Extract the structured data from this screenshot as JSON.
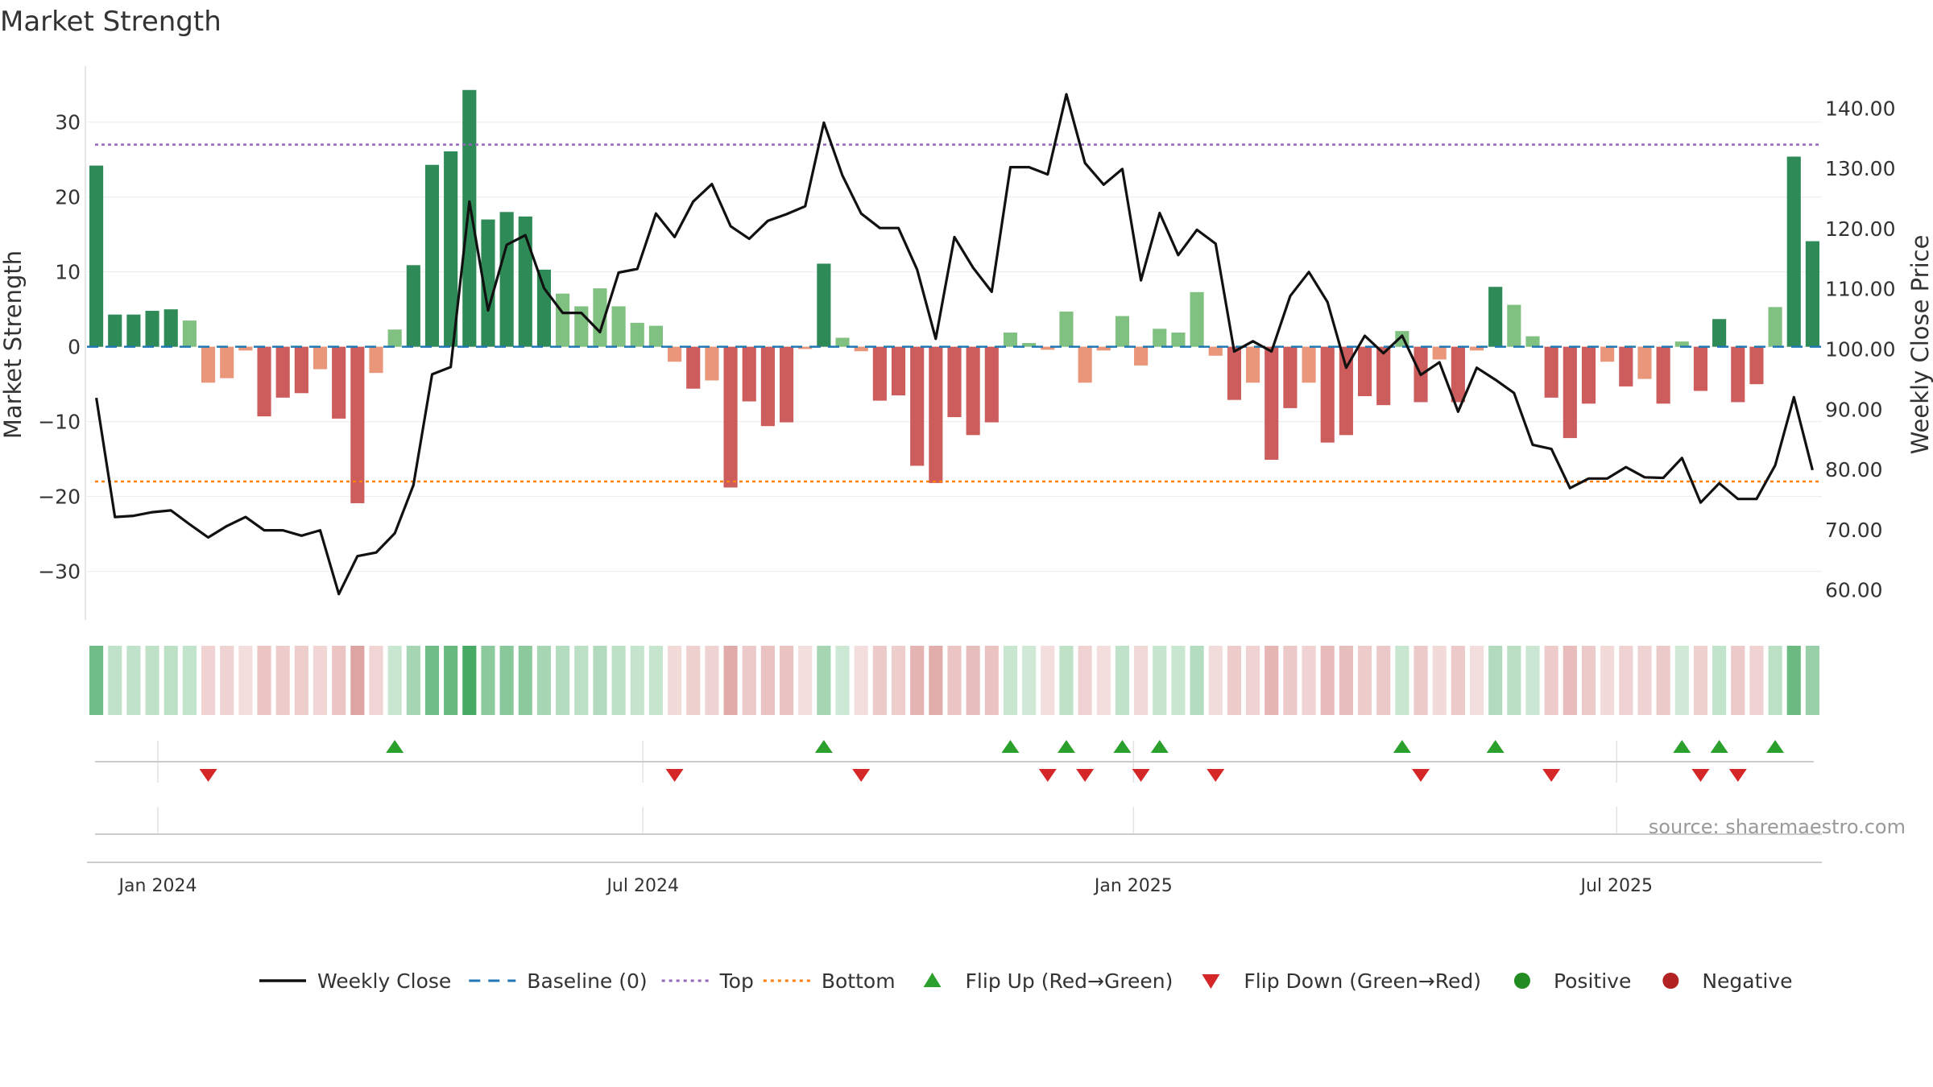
{
  "chart_data": {
    "type": "bar+line",
    "title": "Market Strength",
    "ylabel_left": "Market Strength",
    "ylabel_right": "Weekly Close Price",
    "ylim_left": [
      -36.5,
      37.5
    ],
    "ylim_right": [
      55,
      147
    ],
    "left_ticks": [
      30,
      20,
      10,
      0,
      -10,
      -20,
      -30
    ],
    "left_tick_labels": [
      "30",
      "20",
      "10",
      "0",
      "−10",
      "−20",
      "−30"
    ],
    "right_ticks": [
      140,
      130,
      120,
      110,
      100,
      90,
      80,
      70,
      60
    ],
    "right_tick_labels": [
      "140.00",
      "130.00",
      "120.00",
      "110.00",
      "100.00",
      "90.00",
      "80.00",
      "70.00",
      "60.00"
    ],
    "top_level": 27,
    "bottom_level": -18,
    "baseline": 0,
    "date_ticks": [
      {
        "label": "Jan 2024",
        "week": 3.3
      },
      {
        "label": "Jul 2024",
        "week": 29.3
      },
      {
        "label": "Jan 2025",
        "week": 55.6
      },
      {
        "label": "Jul 2025",
        "week": 81.5
      }
    ],
    "strength": [
      24.2,
      4.3,
      4.3,
      4.8,
      5.0,
      3.5,
      -4.8,
      -4.2,
      -0.5,
      -9.3,
      -6.8,
      -6.2,
      -3.0,
      -9.6,
      -20.9,
      -3.5,
      2.3,
      10.9,
      24.3,
      26.1,
      34.3,
      17.0,
      18.0,
      17.4,
      10.3,
      7.1,
      5.4,
      7.8,
      5.4,
      3.2,
      2.8,
      -2.0,
      -5.6,
      -4.5,
      -18.8,
      -7.3,
      -10.6,
      -10.1,
      -0.3,
      11.1,
      1.2,
      -0.6,
      -7.2,
      -6.5,
      -15.9,
      -18.2,
      -9.4,
      -11.8,
      -10.1,
      1.9,
      0.5,
      -0.4,
      4.7,
      -4.8,
      -0.5,
      4.1,
      -2.5,
      2.4,
      1.9,
      7.3,
      -1.2,
      -7.1,
      -4.8,
      -15.1,
      -8.2,
      -4.8,
      -12.8,
      -11.8,
      -6.6,
      -7.8,
      2.1,
      -7.4,
      -1.7,
      -7.4,
      -0.5,
      8.0,
      5.6,
      1.4,
      -6.8,
      -12.2,
      -7.6,
      -2.0,
      -5.3,
      -4.3,
      -7.6,
      0.7,
      -5.9,
      3.7,
      -7.4,
      -5.0,
      5.3,
      25.4,
      14.1
    ],
    "close": [
      91.9,
      72.1,
      72.3,
      72.9,
      73.2,
      70.9,
      68.7,
      70.6,
      72.1,
      69.9,
      69.9,
      69.0,
      69.9,
      59.3,
      65.6,
      66.2,
      69.4,
      77.4,
      95.8,
      97.0,
      124.5,
      106.4,
      117.3,
      118.9,
      110.1,
      106.0,
      106.0,
      102.8,
      112.7,
      113.3,
      122.5,
      118.6,
      124.5,
      127.4,
      120.4,
      118.3,
      121.3,
      122.4,
      123.7,
      137.6,
      128.8,
      122.5,
      120.1,
      120.1,
      113.2,
      101.7,
      118.6,
      113.5,
      109.5,
      130.2,
      130.2,
      129.0,
      142.3,
      130.9,
      127.3,
      129.9,
      111.4,
      122.6,
      115.6,
      119.8,
      117.5,
      99.6,
      101.3,
      99.6,
      108.8,
      112.8,
      107.8,
      96.9,
      102.2,
      99.3,
      102.2,
      95.7,
      97.8,
      89.6,
      96.9,
      94.9,
      92.7,
      84.1,
      83.4,
      76.9,
      78.5,
      78.5,
      80.4,
      78.7,
      78.6,
      81.9,
      74.5,
      77.7,
      75.1,
      75.1,
      80.7,
      92.0,
      79.9
    ],
    "flip_up_weeks": [
      16,
      39,
      49,
      52,
      55,
      57,
      70,
      75,
      85,
      87,
      90
    ],
    "flip_down_weeks": [
      6,
      31,
      41,
      51,
      53,
      56,
      60,
      71,
      78,
      86,
      88
    ],
    "colors": {
      "strong_positive": "#2e8b57",
      "weak_positive": "#80c080",
      "strong_negative": "#cd5c5c",
      "weak_negative": "#e9967a",
      "close_line": "#111111",
      "baseline": "#1f77b4",
      "top_line": "#9467bd",
      "bottom_line": "#ff7f0e",
      "flip_up": "#2ca02c",
      "flip_down": "#d62728",
      "positive": "#228b22",
      "negative": "#b22222"
    },
    "legend": [
      {
        "label": "Weekly Close",
        "kind": "solid-line",
        "color": "#111111"
      },
      {
        "label": "Baseline (0)",
        "kind": "dashed-line",
        "color": "#1f77b4"
      },
      {
        "label": "Top",
        "kind": "dotted-line",
        "color": "#9467bd"
      },
      {
        "label": "Bottom",
        "kind": "dotted-line",
        "color": "#ff7f0e"
      },
      {
        "label": "Flip Up (Red→Green)",
        "kind": "triangle-up",
        "color": "#2ca02c"
      },
      {
        "label": "Flip Down (Green→Red)",
        "kind": "triangle-down",
        "color": "#d62728"
      },
      {
        "label": "Positive",
        "kind": "dot",
        "color": "#228b22"
      },
      {
        "label": "Negative",
        "kind": "dot",
        "color": "#b22222"
      }
    ],
    "source": "source: sharemaestro.com"
  }
}
